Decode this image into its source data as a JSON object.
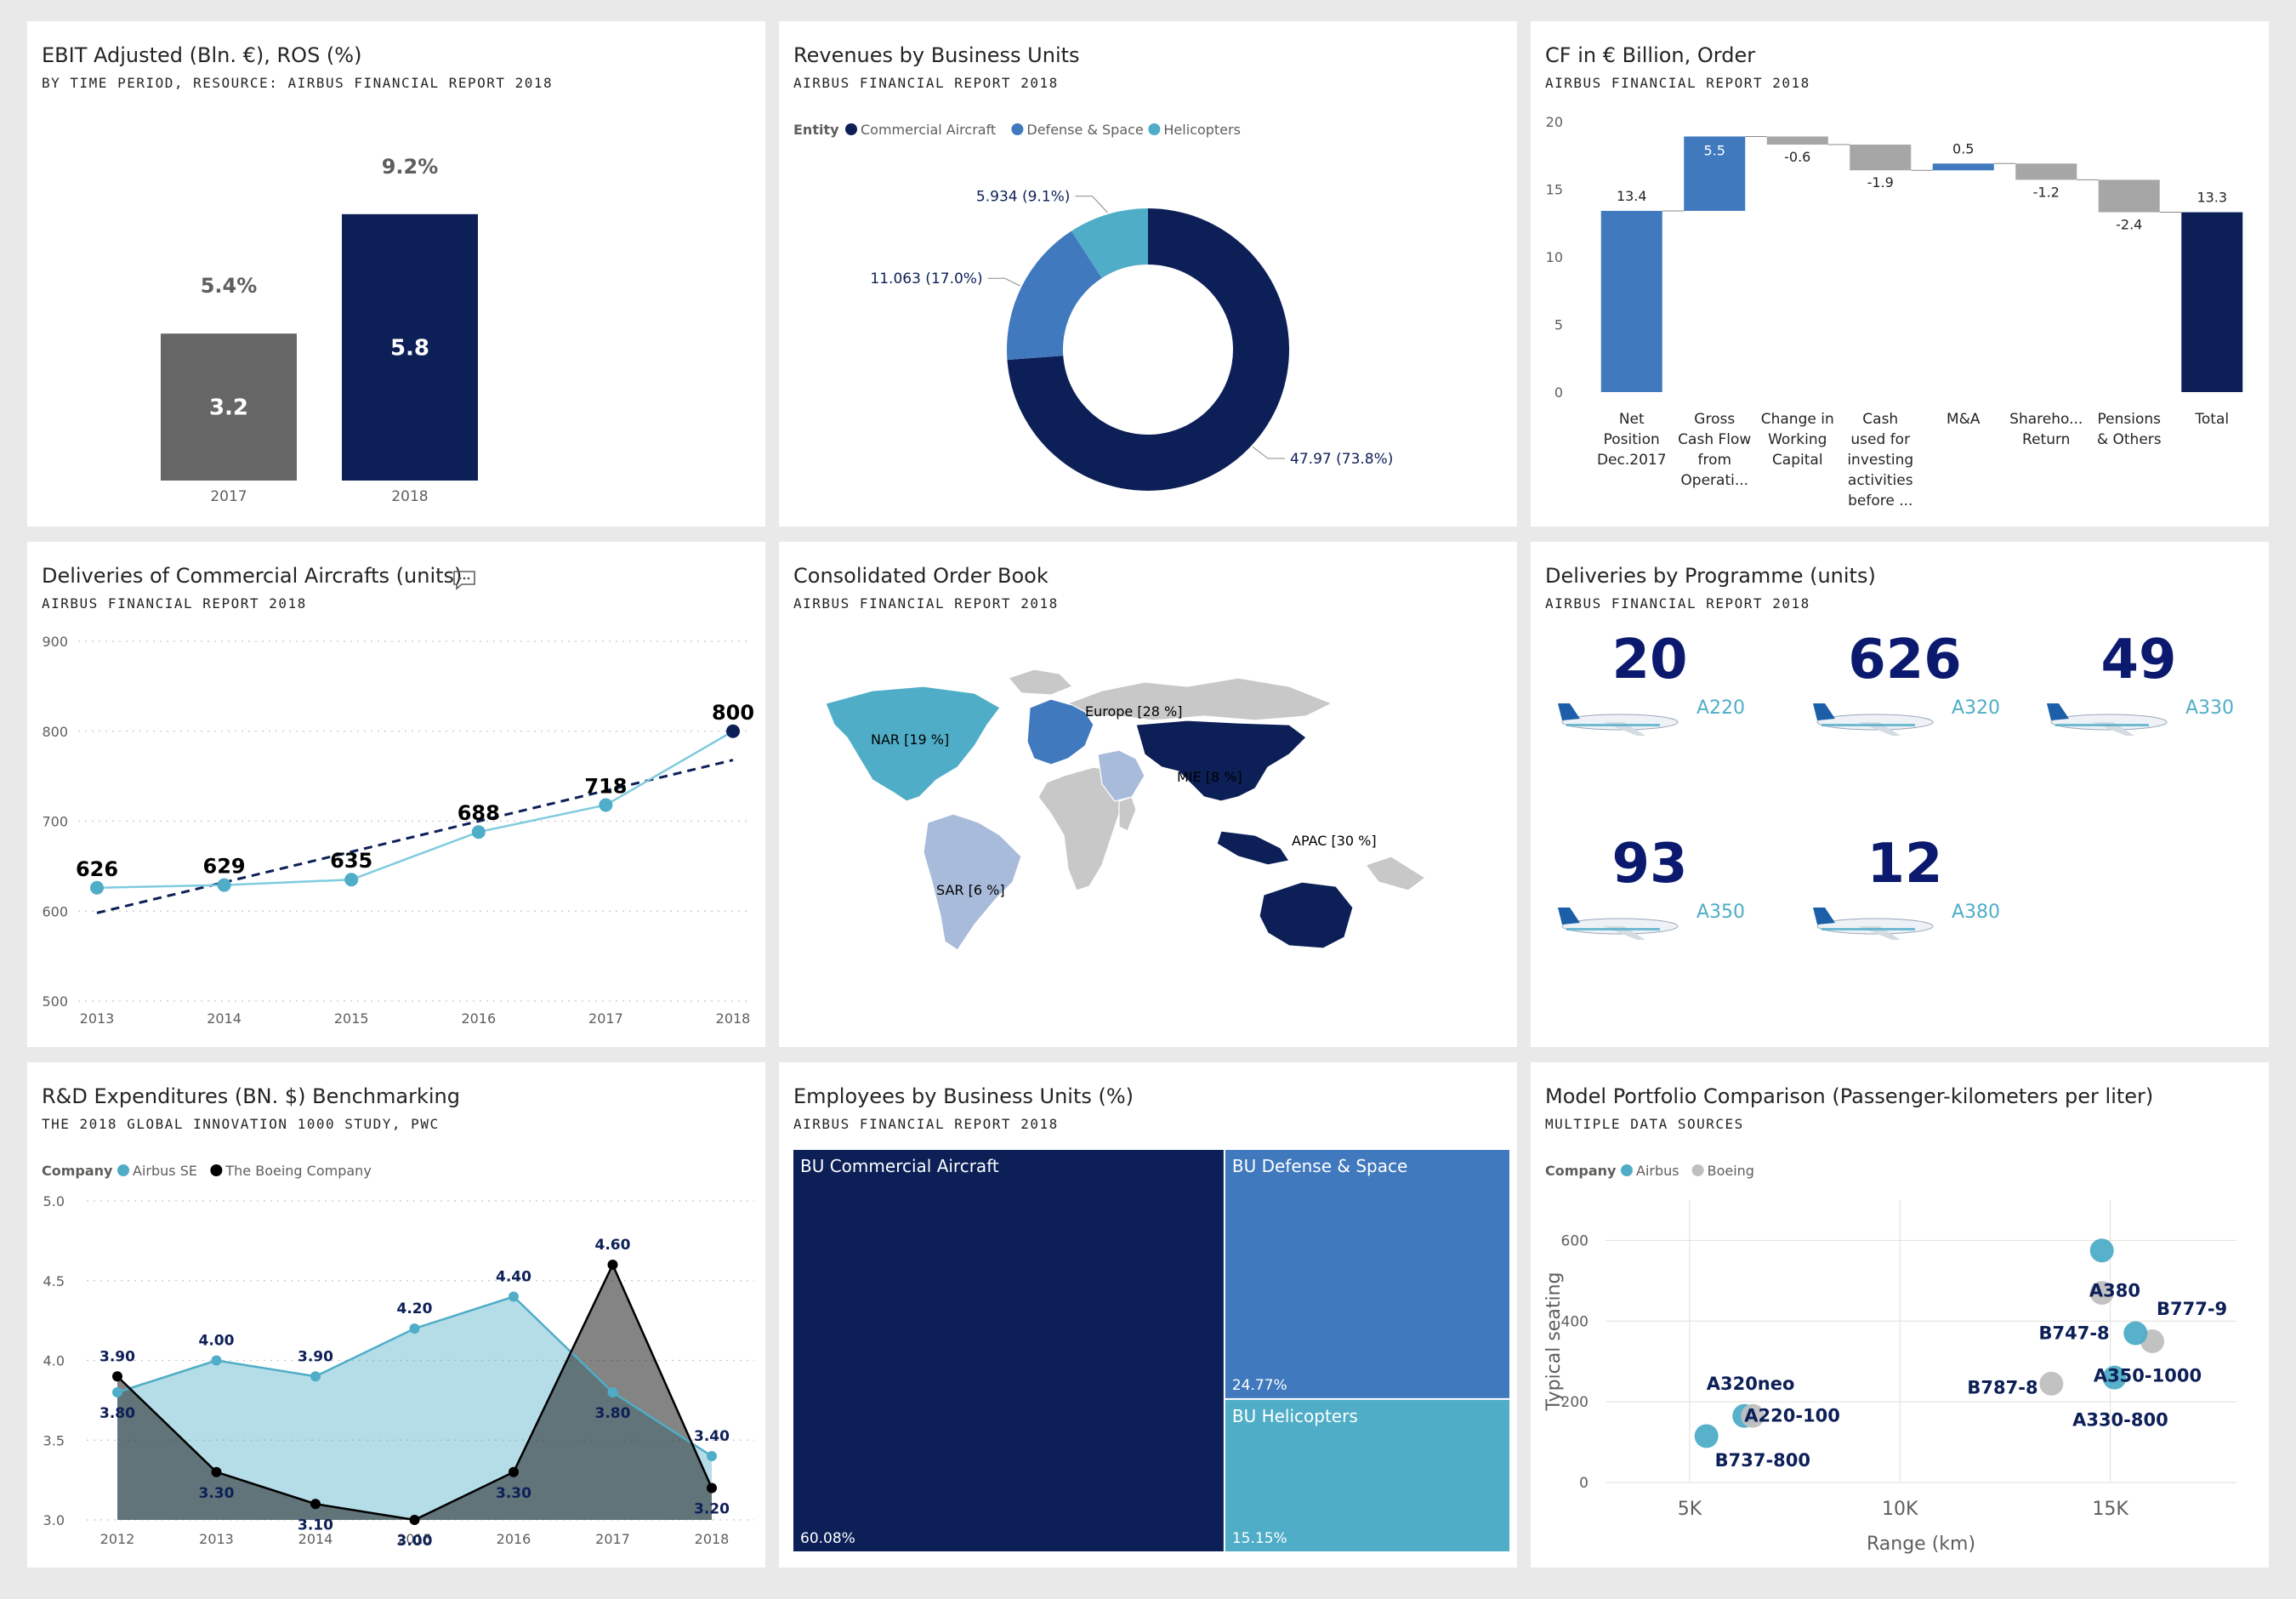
{
  "colors": {
    "navy": "#0c1f57",
    "blue": "#4079bd",
    "teal": "#4fadc7",
    "gray": "#666666",
    "lightgray": "#bfbfbf",
    "midgray": "#a6a6a6",
    "lightblue": "#a9bbdb"
  },
  "panels": {
    "ebit": {
      "title": "EBIT Adjusted (Bln. €), ROS (%)",
      "subtitle": "BY TIME PERIOD, RESOURCE: AIRBUS FINANCIAL REPORT 2018",
      "chart_data": {
        "type": "bar",
        "categories": [
          "2017",
          "2018"
        ],
        "values": [
          3.2,
          5.8
        ],
        "value_labels": [
          "3.2",
          "5.8"
        ],
        "ros_labels": [
          "5.4%",
          "9.2%"
        ],
        "ros": [
          5.4,
          9.2
        ]
      }
    },
    "revenues": {
      "title": "Revenues by Business Units",
      "subtitle": "AIRBUS FINANCIAL REPORT 2018",
      "legend_title": "Entity",
      "chart_data": {
        "type": "pie",
        "donut": true,
        "slices": [
          {
            "name": "Commercial Aircraft",
            "value": 47.97,
            "label": "47.97 (73.8%)",
            "color": "#0c1f57"
          },
          {
            "name": "Defense & Space",
            "value": 11.063,
            "label": "11.063 (17.0%)",
            "color": "#4079bd"
          },
          {
            "name": "Helicopters",
            "value": 5.934,
            "label": "5.934 (9.1%)",
            "color": "#4fadc7"
          }
        ]
      }
    },
    "cashflow": {
      "title": "CF in € Billion, Order",
      "subtitle": "AIRBUS FINANCIAL REPORT 2018",
      "chart_data": {
        "type": "bar",
        "subtype": "waterfall",
        "ylim": [
          0,
          20
        ],
        "yticks": [
          "0",
          "5",
          "10",
          "15",
          "20"
        ],
        "steps": [
          {
            "label": [
              "Net",
              "Position",
              "Dec.2017"
            ],
            "value": 13.4,
            "text": "13.4",
            "kind": "total"
          },
          {
            "label": [
              "Gross",
              "Cash Flow",
              "from",
              "Operati..."
            ],
            "value": 5.5,
            "text": "5.5",
            "kind": "increase"
          },
          {
            "label": [
              "Change in",
              "Working",
              "Capital"
            ],
            "value": -0.6,
            "text": "-0.6",
            "kind": "decrease"
          },
          {
            "label": [
              "Cash",
              "used for",
              "investing",
              "activities",
              "before ..."
            ],
            "value": -1.9,
            "text": "-1.9",
            "kind": "decrease"
          },
          {
            "label": [
              "M&A"
            ],
            "value": 0.5,
            "text": "0.5",
            "kind": "increase"
          },
          {
            "label": [
              "Shareho...",
              "Return"
            ],
            "value": -1.2,
            "text": "-1.2",
            "kind": "decrease"
          },
          {
            "label": [
              "Pensions",
              "& Others"
            ],
            "value": -2.4,
            "text": "-2.4",
            "kind": "decrease"
          },
          {
            "label": [
              "Total"
            ],
            "value": 13.3,
            "text": "13.3",
            "kind": "final"
          }
        ]
      }
    },
    "deliveries": {
      "title": "Deliveries of Commercial Aircrafts (units)",
      "subtitle": "AIRBUS FINANCIAL REPORT 2018",
      "chart_data": {
        "type": "line",
        "x": [
          "2013",
          "2014",
          "2015",
          "2016",
          "2017",
          "2018"
        ],
        "values": [
          626,
          629,
          635,
          688,
          718,
          800
        ],
        "value_labels": [
          "626",
          "629",
          "635",
          "688",
          "718",
          "800"
        ],
        "ylim": [
          500,
          900
        ],
        "yticks": [
          "500",
          "600",
          "700",
          "800",
          "900"
        ],
        "trendline": [
          598,
          632,
          666,
          700,
          734,
          768
        ]
      }
    },
    "orderbook": {
      "title": "Consolidated Order Book",
      "subtitle": "AIRBUS FINANCIAL REPORT 2018",
      "regions": [
        {
          "name": "NAR",
          "label": "NAR [19 %]",
          "color": "#4fadc7"
        },
        {
          "name": "Europe",
          "label": "Europe [28 %]",
          "color": "#4079bd"
        },
        {
          "name": "MIE",
          "label": "MIE [8 %]",
          "color": "#a9bbdb"
        },
        {
          "name": "APAC",
          "label": "APAC [30 %]",
          "color": "#0c1f57"
        },
        {
          "name": "SAR",
          "label": "SAR [6 %]",
          "color": "#a9bbdb"
        }
      ]
    },
    "programme": {
      "title": "Deliveries by Programme (units)",
      "subtitle": "AIRBUS FINANCIAL REPORT 2018",
      "items": [
        {
          "count": "20",
          "model": "A220"
        },
        {
          "count": "626",
          "model": "A320"
        },
        {
          "count": "49",
          "model": "A330"
        },
        {
          "count": "93",
          "model": "A350"
        },
        {
          "count": "12",
          "model": "A380"
        }
      ]
    },
    "rnd": {
      "title": "R&D Expenditures (BN. $) Benchmarking",
      "subtitle": "THE 2018 GLOBAL INNOVATION 1000 STUDY, PWC",
      "legend_title": "Company",
      "chart_data": {
        "type": "area",
        "x": [
          "2012",
          "2013",
          "2014",
          "2015",
          "2016",
          "2017",
          "2018"
        ],
        "ylim": [
          3.0,
          5.0
        ],
        "yticks": [
          "3.0",
          "3.5",
          "4.0",
          "4.5",
          "5.0"
        ],
        "series": [
          {
            "name": "Airbus SE",
            "values": [
              3.8,
              4.0,
              3.9,
              4.2,
              4.4,
              3.8,
              3.4
            ],
            "labels": [
              "3.80",
              "4.00",
              "3.90",
              "4.20",
              "4.40",
              "3.80",
              "3.40"
            ],
            "color": "#4fadc7"
          },
          {
            "name": "The Boeing Company",
            "values": [
              3.9,
              3.3,
              3.1,
              3.0,
              3.3,
              4.6,
              3.2
            ],
            "labels": [
              "3.90",
              "3.30",
              "3.10",
              "3.00",
              "3.30",
              "4.60",
              "3.20"
            ],
            "color": "#000000"
          }
        ]
      }
    },
    "employees": {
      "title": "Employees by Business Units (%)",
      "subtitle": "AIRBUS FINANCIAL REPORT 2018",
      "chart_data": {
        "type": "treemap",
        "items": [
          {
            "name": "BU Commercial Aircraft",
            "value": 60.08,
            "label": "60.08%",
            "color": "#0c1f57"
          },
          {
            "name": "BU Defense & Space",
            "value": 24.77,
            "label": "24.77%",
            "color": "#4079bd"
          },
          {
            "name": "BU Helicopters",
            "value": 15.15,
            "label": "15.15%",
            "color": "#4fadc7"
          }
        ]
      }
    },
    "portfolio": {
      "title": "Model Portfolio Comparison (Passenger-kilometers per liter)",
      "subtitle": "MULTIPLE DATA SOURCES",
      "legend_title": "Company",
      "chart_data": {
        "type": "scatter",
        "xlabel": "Range (km)",
        "ylabel": "Typical seating",
        "xlim": [
          3000,
          18000
        ],
        "ylim": [
          0,
          700
        ],
        "xticks": [
          {
            "v": 5000,
            "t": "5K"
          },
          {
            "v": 10000,
            "t": "10K"
          },
          {
            "v": 15000,
            "t": "15K"
          }
        ],
        "yticks": [
          {
            "v": 0,
            "t": "0"
          },
          {
            "v": 200,
            "t": "200"
          },
          {
            "v": 400,
            "t": "400"
          },
          {
            "v": 600,
            "t": "600"
          }
        ],
        "series": [
          {
            "name": "Airbus",
            "color": "#4fadc7"
          },
          {
            "name": "Boeing",
            "color": "#bfbfbf"
          }
        ],
        "points": [
          {
            "name": "A380",
            "company": "Airbus",
            "x": 14800,
            "y": 575
          },
          {
            "name": "B777-9",
            "company": "Boeing",
            "x": 16000,
            "y": 350
          },
          {
            "name": "B747-8",
            "company": "Boeing",
            "x": 14800,
            "y": 470
          },
          {
            "name": "A350-1000",
            "company": "Airbus",
            "x": 15600,
            "y": 370
          },
          {
            "name": "A330-800",
            "company": "Airbus",
            "x": 15100,
            "y": 260
          },
          {
            "name": "B787-8",
            "company": "Boeing",
            "x": 13600,
            "y": 245
          },
          {
            "name": "A320neo",
            "company": "Airbus",
            "x": 6300,
            "y": 165
          },
          {
            "name": "A220-100",
            "company": "Boeing",
            "x": 6500,
            "y": 165
          },
          {
            "name": "B737-800",
            "company": "Airbus",
            "x": 5400,
            "y": 115
          }
        ],
        "labels": [
          {
            "name": "A380",
            "x": 14500,
            "y": 475
          },
          {
            "name": "B777-9",
            "x": 16100,
            "y": 430
          },
          {
            "name": "B747-8",
            "x": 13300,
            "y": 370
          },
          {
            "name": "A350-1000",
            "x": 14600,
            "y": 265
          },
          {
            "name": "B787-8",
            "x": 11600,
            "y": 235
          },
          {
            "name": "A330-800",
            "x": 14100,
            "y": 155
          },
          {
            "name": "A320neo",
            "x": 5400,
            "y": 245
          },
          {
            "name": "A220-100",
            "x": 6300,
            "y": 165
          },
          {
            "name": "B737-800",
            "x": 5600,
            "y": 55
          }
        ]
      }
    }
  }
}
